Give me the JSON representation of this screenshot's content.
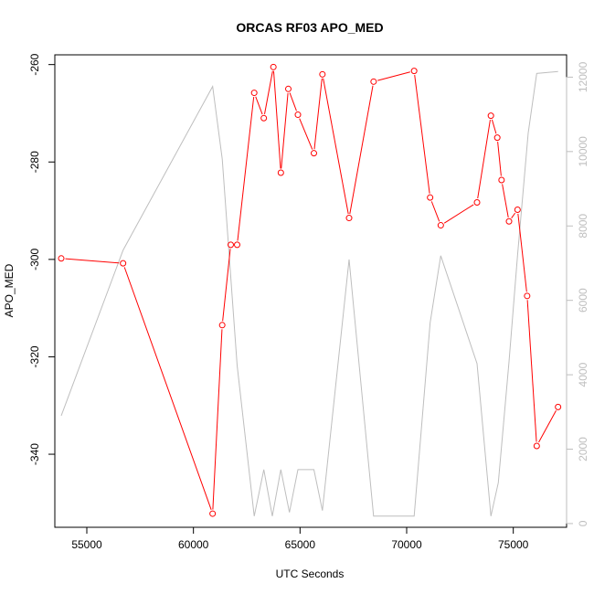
{
  "chart_data": {
    "type": "line",
    "title": "ORCAS RF03 APO_MED",
    "xlabel": "UTC Seconds",
    "ylabel": "APO_MED",
    "xlim": [
      53500,
      77500
    ],
    "ylim": [
      -355,
      -258
    ],
    "y2lim": [
      -100,
      12600
    ],
    "xticks": [
      55000,
      60000,
      65000,
      70000,
      75000
    ],
    "yticks": [
      -340,
      -320,
      -300,
      -280,
      -260
    ],
    "y2ticks": [
      0,
      2000,
      4000,
      6000,
      8000,
      10000,
      12000
    ],
    "grid": false,
    "colors": {
      "primary": "#ff0000",
      "secondary": "#bebebe",
      "axis": "#000000"
    },
    "series": [
      {
        "axis": "left",
        "markers": "open-circle",
        "x": [
          53800,
          56700,
          60900,
          61350,
          61750,
          62050,
          62850,
          63300,
          63750,
          64100,
          64450,
          64900,
          65650,
          66050,
          67300,
          68450,
          70350,
          71100,
          71600,
          73300,
          73950,
          74250,
          74450,
          74800,
          75200,
          75650,
          76100,
          77100
        ],
        "values": [
          -299.8,
          -300.8,
          -352.2,
          -313.5,
          -297.0,
          -297.0,
          -265.8,
          -271.0,
          -260.5,
          -282.2,
          -265.0,
          -270.3,
          -278.2,
          -262.0,
          -291.5,
          -263.5,
          -261.3,
          -287.3,
          -293.0,
          -288.3,
          -270.5,
          -275.0,
          -283.7,
          -292.2,
          -289.8,
          -307.5,
          -338.3,
          -330.3
        ]
      },
      {
        "axis": "right",
        "markers": "none",
        "x": [
          53800,
          56700,
          60900,
          61350,
          62050,
          62850,
          63300,
          63700,
          64100,
          64500,
          64900,
          65650,
          66050,
          67300,
          68450,
          70350,
          71100,
          71600,
          73300,
          73950,
          74300,
          74800,
          75200,
          75700,
          76100,
          77100
        ],
        "values": [
          2900,
          7350,
          11750,
          9800,
          4250,
          200,
          1450,
          200,
          1450,
          300,
          1450,
          1450,
          350,
          7100,
          200,
          200,
          5400,
          7200,
          4300,
          200,
          1100,
          4350,
          7200,
          10500,
          12100,
          12150
        ]
      }
    ]
  }
}
